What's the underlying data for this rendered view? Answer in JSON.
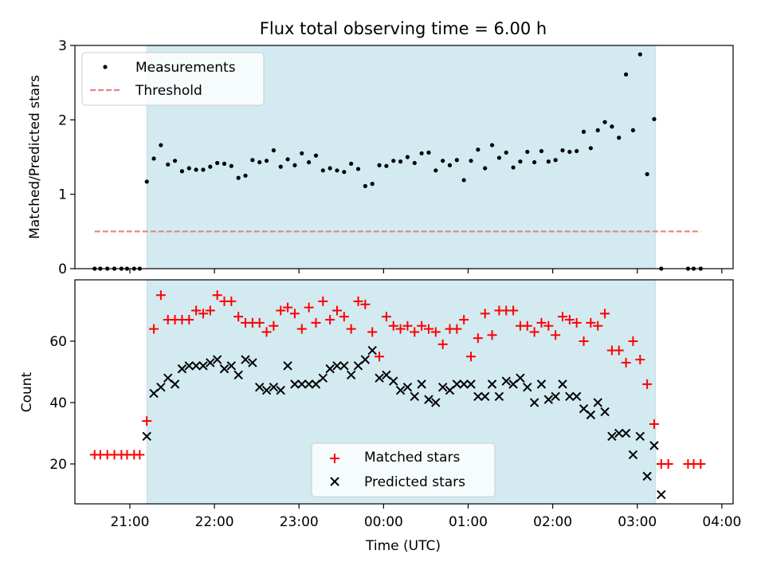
{
  "title": "Flux total observing time = 6.00 h",
  "x_label": "Time (UTC)",
  "x_ticks": [
    "21:00",
    "22:00",
    "23:00",
    "00:00",
    "01:00",
    "02:00",
    "03:00",
    "04:00"
  ],
  "colors": {
    "shade": "#d3eaf1",
    "threshold": "#f08080",
    "matched": "#ff0000",
    "predicted": "#000000"
  },
  "chart_data": [
    {
      "type": "scatter",
      "ylabel": "Matched/Predicted stars",
      "xlim": [
        "20:21",
        "04:08"
      ],
      "ylim": [
        0,
        3
      ],
      "y_ticks": [
        "0",
        "1",
        "2",
        "3"
      ],
      "shaded_span": [
        "21:12",
        "03:13"
      ],
      "legend": {
        "placement": "top-left",
        "entries": [
          "Measurements",
          "Threshold"
        ]
      },
      "threshold": {
        "name": "Threshold",
        "y": 0.5,
        "x": [
          "20:35",
          "03:45"
        ]
      },
      "series": [
        {
          "name": "Measurements",
          "points": [
            [
              "20:35",
              0
            ],
            [
              "20:39",
              0
            ],
            [
              "20:44",
              0
            ],
            [
              "20:49",
              0
            ],
            [
              "20:54",
              0
            ],
            [
              "20:58",
              0
            ],
            [
              "21:03",
              0
            ],
            [
              "21:07",
              0
            ],
            [
              "21:12",
              1.17
            ],
            [
              "21:17",
              1.48
            ],
            [
              "21:22",
              1.66
            ],
            [
              "21:27",
              1.4
            ],
            [
              "21:32",
              1.45
            ],
            [
              "21:37",
              1.31
            ],
            [
              "21:42",
              1.35
            ],
            [
              "21:47",
              1.33
            ],
            [
              "21:52",
              1.33
            ],
            [
              "21:57",
              1.37
            ],
            [
              "22:02",
              1.42
            ],
            [
              "22:07",
              1.41
            ],
            [
              "22:12",
              1.38
            ],
            [
              "22:17",
              1.22
            ],
            [
              "22:22",
              1.25
            ],
            [
              "22:27",
              1.46
            ],
            [
              "22:32",
              1.43
            ],
            [
              "22:37",
              1.45
            ],
            [
              "22:42",
              1.59
            ],
            [
              "22:47",
              1.37
            ],
            [
              "22:52",
              1.47
            ],
            [
              "22:57",
              1.39
            ],
            [
              "23:02",
              1.55
            ],
            [
              "23:07",
              1.43
            ],
            [
              "23:12",
              1.52
            ],
            [
              "23:17",
              1.32
            ],
            [
              "23:22",
              1.35
            ],
            [
              "23:27",
              1.32
            ],
            [
              "23:32",
              1.3
            ],
            [
              "23:37",
              1.41
            ],
            [
              "23:42",
              1.34
            ],
            [
              "23:47",
              1.11
            ],
            [
              "23:52",
              1.14
            ],
            [
              "23:57",
              1.39
            ],
            [
              "00:02",
              1.38
            ],
            [
              "00:07",
              1.45
            ],
            [
              "00:12",
              1.44
            ],
            [
              "00:17",
              1.5
            ],
            [
              "00:22",
              1.42
            ],
            [
              "00:27",
              1.55
            ],
            [
              "00:32",
              1.56
            ],
            [
              "00:37",
              1.32
            ],
            [
              "00:42",
              1.45
            ],
            [
              "00:47",
              1.39
            ],
            [
              "00:52",
              1.46
            ],
            [
              "00:57",
              1.19
            ],
            [
              "01:02",
              1.45
            ],
            [
              "01:07",
              1.6
            ],
            [
              "01:12",
              1.35
            ],
            [
              "01:17",
              1.66
            ],
            [
              "01:22",
              1.49
            ],
            [
              "01:27",
              1.56
            ],
            [
              "01:32",
              1.36
            ],
            [
              "01:37",
              1.44
            ],
            [
              "01:42",
              1.57
            ],
            [
              "01:47",
              1.43
            ],
            [
              "01:52",
              1.58
            ],
            [
              "01:57",
              1.44
            ],
            [
              "02:02",
              1.46
            ],
            [
              "02:07",
              1.59
            ],
            [
              "02:12",
              1.57
            ],
            [
              "02:17",
              1.58
            ],
            [
              "02:22",
              1.84
            ],
            [
              "02:27",
              1.62
            ],
            [
              "02:32",
              1.86
            ],
            [
              "02:37",
              1.97
            ],
            [
              "02:42",
              1.91
            ],
            [
              "02:47",
              1.76
            ],
            [
              "02:52",
              2.61
            ],
            [
              "02:57",
              1.86
            ],
            [
              "03:02",
              2.88
            ],
            [
              "03:07",
              1.27
            ],
            [
              "03:12",
              2.01
            ],
            [
              "03:17",
              0
            ],
            [
              "03:36",
              0
            ],
            [
              "03:40",
              0
            ],
            [
              "03:45",
              0
            ]
          ]
        }
      ]
    },
    {
      "type": "scatter",
      "ylabel": "Count",
      "xlabel": "Time (UTC)",
      "xlim": [
        "20:21",
        "04:08"
      ],
      "ylim": [
        7,
        80
      ],
      "y_ticks": [
        "20",
        "40",
        "60"
      ],
      "shaded_span": [
        "21:12",
        "03:13"
      ],
      "legend": {
        "placement": "lower-center",
        "entries": [
          "Matched stars",
          "Predicted stars"
        ]
      },
      "series": [
        {
          "name": "Matched stars",
          "marker": "+",
          "points": [
            [
              "20:35",
              23
            ],
            [
              "20:39",
              23
            ],
            [
              "20:44",
              23
            ],
            [
              "20:49",
              23
            ],
            [
              "20:54",
              23
            ],
            [
              "20:58",
              23
            ],
            [
              "21:03",
              23
            ],
            [
              "21:07",
              23
            ],
            [
              "21:12",
              34
            ],
            [
              "21:17",
              64
            ],
            [
              "21:22",
              75
            ],
            [
              "21:27",
              67
            ],
            [
              "21:32",
              67
            ],
            [
              "21:37",
              67
            ],
            [
              "21:42",
              67
            ],
            [
              "21:47",
              70
            ],
            [
              "21:52",
              69
            ],
            [
              "21:57",
              70
            ],
            [
              "22:02",
              75
            ],
            [
              "22:07",
              73
            ],
            [
              "22:12",
              73
            ],
            [
              "22:17",
              68
            ],
            [
              "22:22",
              66
            ],
            [
              "22:27",
              66
            ],
            [
              "22:32",
              66
            ],
            [
              "22:37",
              63
            ],
            [
              "22:42",
              65
            ],
            [
              "22:47",
              70
            ],
            [
              "22:52",
              71
            ],
            [
              "22:57",
              69
            ],
            [
              "23:02",
              64
            ],
            [
              "23:07",
              71
            ],
            [
              "23:12",
              66
            ],
            [
              "23:17",
              73
            ],
            [
              "23:22",
              67
            ],
            [
              "23:27",
              70
            ],
            [
              "23:32",
              68
            ],
            [
              "23:37",
              64
            ],
            [
              "23:42",
              73
            ],
            [
              "23:47",
              72
            ],
            [
              "23:52",
              63
            ],
            [
              "23:57",
              55
            ],
            [
              "00:02",
              68
            ],
            [
              "00:07",
              65
            ],
            [
              "00:12",
              64
            ],
            [
              "00:17",
              65
            ],
            [
              "00:22",
              63
            ],
            [
              "00:27",
              65
            ],
            [
              "00:32",
              64
            ],
            [
              "00:37",
              63
            ],
            [
              "00:42",
              59
            ],
            [
              "00:47",
              64
            ],
            [
              "00:52",
              64
            ],
            [
              "00:57",
              67
            ],
            [
              "01:02",
              55
            ],
            [
              "01:07",
              61
            ],
            [
              "01:12",
              69
            ],
            [
              "01:17",
              62
            ],
            [
              "01:22",
              70
            ],
            [
              "01:27",
              70
            ],
            [
              "01:32",
              70
            ],
            [
              "01:37",
              65
            ],
            [
              "01:42",
              65
            ],
            [
              "01:47",
              63
            ],
            [
              "01:52",
              66
            ],
            [
              "01:57",
              65
            ],
            [
              "02:02",
              62
            ],
            [
              "02:07",
              68
            ],
            [
              "02:12",
              67
            ],
            [
              "02:17",
              66
            ],
            [
              "02:22",
              60
            ],
            [
              "02:27",
              66
            ],
            [
              "02:32",
              65
            ],
            [
              "02:37",
              69
            ],
            [
              "02:42",
              57
            ],
            [
              "02:47",
              57
            ],
            [
              "02:52",
              53
            ],
            [
              "02:57",
              60
            ],
            [
              "03:02",
              54
            ],
            [
              "03:07",
              46
            ],
            [
              "03:12",
              33
            ],
            [
              "03:17",
              20
            ],
            [
              "03:22",
              20
            ],
            [
              "03:36",
              20
            ],
            [
              "03:40",
              20
            ],
            [
              "03:45",
              20
            ]
          ]
        },
        {
          "name": "Predicted stars",
          "marker": "x",
          "points": [
            [
              "21:12",
              29
            ],
            [
              "21:17",
              43
            ],
            [
              "21:22",
              45
            ],
            [
              "21:27",
              48
            ],
            [
              "21:32",
              46
            ],
            [
              "21:37",
              51
            ],
            [
              "21:42",
              52
            ],
            [
              "21:47",
              52
            ],
            [
              "21:52",
              52
            ],
            [
              "21:57",
              53
            ],
            [
              "22:02",
              54
            ],
            [
              "22:07",
              51
            ],
            [
              "22:12",
              52
            ],
            [
              "22:17",
              49
            ],
            [
              "22:22",
              54
            ],
            [
              "22:27",
              53
            ],
            [
              "22:32",
              45
            ],
            [
              "22:37",
              44
            ],
            [
              "22:42",
              45
            ],
            [
              "22:47",
              44
            ],
            [
              "22:52",
              52
            ],
            [
              "22:57",
              46
            ],
            [
              "23:02",
              46
            ],
            [
              "23:07",
              46
            ],
            [
              "23:12",
              46
            ],
            [
              "23:17",
              48
            ],
            [
              "23:22",
              51
            ],
            [
              "23:27",
              52
            ],
            [
              "23:32",
              52
            ],
            [
              "23:37",
              49
            ],
            [
              "23:42",
              52
            ],
            [
              "23:47",
              54
            ],
            [
              "23:52",
              57
            ],
            [
              "23:57",
              48
            ],
            [
              "00:02",
              49
            ],
            [
              "00:07",
              47
            ],
            [
              "00:12",
              44
            ],
            [
              "00:17",
              45
            ],
            [
              "00:22",
              42
            ],
            [
              "00:27",
              46
            ],
            [
              "00:32",
              41
            ],
            [
              "00:37",
              40
            ],
            [
              "00:42",
              45
            ],
            [
              "00:47",
              44
            ],
            [
              "00:52",
              46
            ],
            [
              "00:57",
              46
            ],
            [
              "01:02",
              46
            ],
            [
              "01:07",
              42
            ],
            [
              "01:12",
              42
            ],
            [
              "01:17",
              46
            ],
            [
              "01:22",
              42
            ],
            [
              "01:27",
              47
            ],
            [
              "01:32",
              46
            ],
            [
              "01:37",
              48
            ],
            [
              "01:42",
              45
            ],
            [
              "01:47",
              40
            ],
            [
              "01:52",
              46
            ],
            [
              "01:57",
              41
            ],
            [
              "02:02",
              42
            ],
            [
              "02:07",
              46
            ],
            [
              "02:12",
              42
            ],
            [
              "02:17",
              42
            ],
            [
              "02:22",
              38
            ],
            [
              "02:27",
              36
            ],
            [
              "02:32",
              40
            ],
            [
              "02:37",
              37
            ],
            [
              "02:42",
              29
            ],
            [
              "02:47",
              30
            ],
            [
              "02:52",
              30
            ],
            [
              "02:57",
              23
            ],
            [
              "03:02",
              29
            ],
            [
              "03:07",
              16
            ],
            [
              "03:12",
              26
            ],
            [
              "03:17",
              10
            ]
          ]
        }
      ]
    }
  ]
}
